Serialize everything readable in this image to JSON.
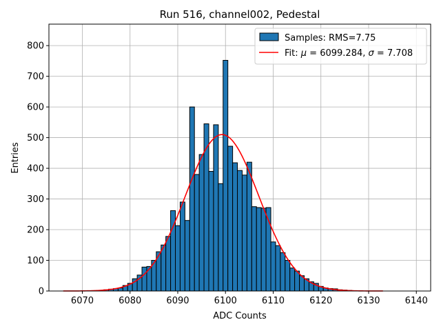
{
  "chart_data": {
    "type": "bar",
    "title": "Run 516, channel002, Pedestal",
    "xlabel": "ADC Counts",
    "ylabel": "Entries",
    "xlim": [
      6063,
      6143
    ],
    "ylim": [
      0,
      870
    ],
    "xticks": [
      6070,
      6080,
      6090,
      6100,
      6110,
      6120,
      6130,
      6140
    ],
    "yticks": [
      0,
      100,
      200,
      300,
      400,
      500,
      600,
      700,
      800
    ],
    "grid": true,
    "legend_position": "top-right",
    "bin_width": 1,
    "colors": {
      "bars": "#1f77b4",
      "bar_edge": "#000000",
      "fit": "#ff0000",
      "grid": "#b0b0b0"
    },
    "histogram": {
      "name": "Samples: RMS=7.75",
      "x": [
        6070,
        6071,
        6072,
        6073,
        6074,
        6075,
        6076,
        6077,
        6078,
        6079,
        6080,
        6081,
        6082,
        6083,
        6084,
        6085,
        6086,
        6087,
        6088,
        6089,
        6090,
        6091,
        6092,
        6093,
        6094,
        6095,
        6096,
        6097,
        6098,
        6099,
        6100,
        6101,
        6102,
        6103,
        6104,
        6105,
        6106,
        6107,
        6108,
        6109,
        6110,
        6111,
        6112,
        6113,
        6114,
        6115,
        6116,
        6117,
        6118,
        6119,
        6120,
        6121,
        6122,
        6123,
        6124,
        6125,
        6126,
        6127,
        6128,
        6129,
        6130
      ],
      "values": [
        0,
        1,
        1,
        1,
        2,
        4,
        6,
        8,
        10,
        18,
        25,
        40,
        52,
        78,
        80,
        100,
        128,
        150,
        178,
        262,
        213,
        290,
        230,
        600,
        380,
        445,
        545,
        390,
        542,
        350,
        752,
        472,
        418,
        393,
        378,
        420,
        275,
        272,
        270,
        272,
        160,
        148,
        125,
        100,
        75,
        65,
        50,
        40,
        30,
        25,
        15,
        10,
        8,
        7,
        4,
        3,
        2,
        1,
        1,
        0,
        0
      ]
    },
    "fit": {
      "name": "Fit: μ = 6099.284, σ = 7.708",
      "mu": 6099.284,
      "sigma": 7.708,
      "amplitude": 510,
      "x_range": [
        6066,
        6133
      ]
    }
  },
  "legend": {
    "samples_label": "Samples: RMS=7.75",
    "fit_label_prefix": "Fit: ",
    "fit_mu_symbol": "μ",
    "fit_mu_value": " = 6099.284, ",
    "fit_sigma_symbol": "σ",
    "fit_sigma_value": " = 7.708"
  }
}
